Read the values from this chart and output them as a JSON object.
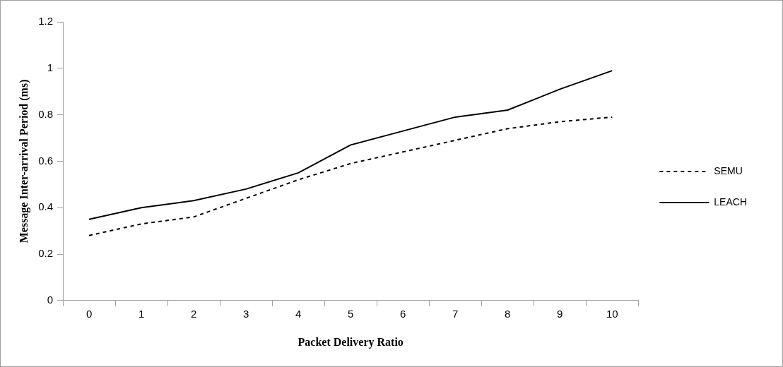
{
  "chart_data": {
    "type": "line",
    "xlabel": "Packet Delivery Ratio",
    "ylabel": "Message Inter-arrival Period (ms)",
    "categories": [
      "0",
      "1",
      "2",
      "3",
      "4",
      "5",
      "6",
      "7",
      "8",
      "9",
      "10"
    ],
    "series": [
      {
        "name": "SEMU",
        "color": "#000000",
        "line_style": "dashed",
        "values": [
          0.28,
          0.33,
          0.36,
          0.44,
          0.52,
          0.59,
          0.64,
          0.69,
          0.74,
          0.77,
          0.79
        ]
      },
      {
        "name": "LEACH",
        "color": "#000000",
        "line_style": "solid",
        "values": [
          0.35,
          0.4,
          0.43,
          0.48,
          0.55,
          0.67,
          0.73,
          0.79,
          0.82,
          0.91,
          0.99
        ]
      }
    ],
    "ylim": [
      0,
      1.2
    ],
    "yticks": [
      0,
      0.2,
      0.4,
      0.6,
      0.8,
      1,
      1.2
    ],
    "grid": false,
    "legend": "right",
    "marker": "none"
  }
}
